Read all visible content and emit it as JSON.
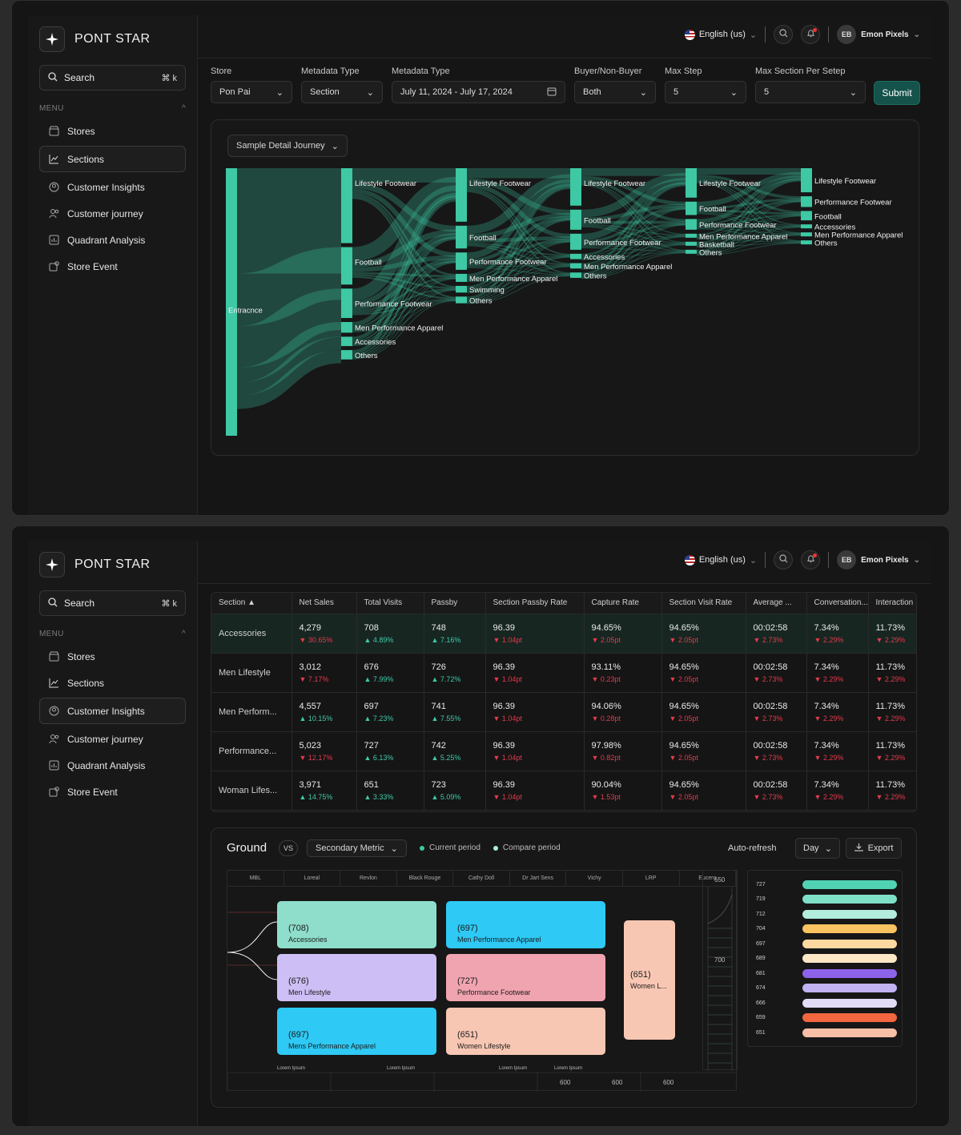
{
  "app": {
    "name": "PONT STAR"
  },
  "search": {
    "label": "Search",
    "shortcut": "⌘ k"
  },
  "menu": {
    "heading": "MENU"
  },
  "nav_p1": [
    {
      "label": "Stores",
      "icon": "store-icon"
    },
    {
      "label": "Sections",
      "icon": "chart-line-icon"
    },
    {
      "label": "Customer Insights",
      "icon": "insights-icon"
    },
    {
      "label": "Customer journey",
      "icon": "users-icon"
    },
    {
      "label": "Quadrant Analysis",
      "icon": "quadrant-icon"
    },
    {
      "label": "Store Event",
      "icon": "event-icon"
    }
  ],
  "topbar": {
    "language": "English (us)",
    "user_name": "Emon Pixels",
    "user_initials": "EB"
  },
  "filters": [
    {
      "label": "Store",
      "value": "Pon Pai"
    },
    {
      "label": "Metadata Type",
      "value": "Section"
    },
    {
      "label": "Metadata Type",
      "value": "July 11, 2024 - July 17, 2024"
    },
    {
      "label": "Buyer/Non-Buyer",
      "value": "Both"
    },
    {
      "label": "Max Step",
      "value": "5"
    },
    {
      "label": "Max Section Per Setep",
      "value": "5"
    }
  ],
  "submit_label": "Submit",
  "journey": {
    "dropdown": "Sample Detail Journey",
    "color": "#3ec8a4",
    "columns": [
      [
        {
          "name": "Entracnce",
          "share": 1.0
        }
      ],
      [
        {
          "name": "Lifestyle Footwear",
          "share": 0.28
        },
        {
          "name": "Football",
          "share": 0.14
        },
        {
          "name": "Performance Footwear",
          "share": 0.11
        },
        {
          "name": "Men Performance Apparel",
          "share": 0.04
        },
        {
          "name": "Accessories",
          "share": 0.035
        },
        {
          "name": "Others",
          "share": 0.035
        }
      ],
      [
        {
          "name": "Lifestyle Footwear",
          "share": 0.2
        },
        {
          "name": "Football",
          "share": 0.085
        },
        {
          "name": "Performance Footwear",
          "share": 0.065
        },
        {
          "name": "Men Performance Apparel",
          "share": 0.03
        },
        {
          "name": "Swimming",
          "share": 0.025
        },
        {
          "name": "Others",
          "share": 0.025
        }
      ],
      [
        {
          "name": "Lifestyle Footwear",
          "share": 0.14
        },
        {
          "name": "Football",
          "share": 0.075
        },
        {
          "name": "Performance Footwear",
          "share": 0.06
        },
        {
          "name": "Accessories",
          "share": 0.02
        },
        {
          "name": "Men Performance Apparel",
          "share": 0.02
        },
        {
          "name": "Others",
          "share": 0.02
        }
      ],
      [
        {
          "name": "Lifestyle Footwear",
          "share": 0.11
        },
        {
          "name": "Football",
          "share": 0.05
        },
        {
          "name": "Performance Footwear",
          "share": 0.04
        },
        {
          "name": "Men Performance Apparel",
          "share": 0.015
        },
        {
          "name": "Basketball",
          "share": 0.015
        },
        {
          "name": "Others",
          "share": 0.015
        }
      ],
      [
        {
          "name": "Lifestyle Footwear",
          "share": 0.09
        },
        {
          "name": "Performance Footwear",
          "share": 0.04
        },
        {
          "name": "Football",
          "share": 0.035
        },
        {
          "name": "Accessories",
          "share": 0.012
        },
        {
          "name": "Men Performance Apparel",
          "share": 0.012
        },
        {
          "name": "Others",
          "share": 0.012
        }
      ]
    ]
  },
  "nav_p2": [
    {
      "label": "Stores",
      "icon": "store-icon"
    },
    {
      "label": "Sections",
      "icon": "chart-line-icon"
    },
    {
      "label": "Customer Insights",
      "icon": "insights-icon"
    },
    {
      "label": "Customer journey",
      "icon": "users-icon"
    },
    {
      "label": "Quadrant Analysis",
      "icon": "quadrant-icon"
    },
    {
      "label": "Store Event",
      "icon": "event-icon"
    }
  ],
  "table": {
    "columns": [
      "Section",
      "Net Sales",
      "Total Visits",
      "Passby",
      "Section Passby Rate",
      "Capture Rate",
      "Section Visit Rate",
      "Average ...",
      "Conversation...",
      "Interaction"
    ],
    "rows": [
      {
        "section": "Accessories",
        "cells": [
          [
            "4,279",
            "30.65%",
            "dn"
          ],
          [
            "708",
            "4.89%",
            "up"
          ],
          [
            "748",
            "7.16%",
            "up"
          ],
          [
            "96.39",
            "1.04pt",
            "dn"
          ],
          [
            "94.65%",
            "2.05pt",
            "dn"
          ],
          [
            "94.65%",
            "2.05pt",
            "dn"
          ],
          [
            "00:02:58",
            "2.73%",
            "dn"
          ],
          [
            "7.34%",
            "2.29%",
            "dn"
          ],
          [
            "11.73%",
            "2.29%",
            "dn"
          ]
        ]
      },
      {
        "section": "Men Lifestyle",
        "cells": [
          [
            "3,012",
            "7.17%",
            "dn"
          ],
          [
            "676",
            "7.99%",
            "up"
          ],
          [
            "726",
            "7.72%",
            "up"
          ],
          [
            "96.39",
            "1.04pt",
            "dn"
          ],
          [
            "93.11%",
            "0.23pt",
            "dn"
          ],
          [
            "94.65%",
            "2.05pt",
            "dn"
          ],
          [
            "00:02:58",
            "2.73%",
            "dn"
          ],
          [
            "7.34%",
            "2.29%",
            "dn"
          ],
          [
            "11.73%",
            "2.29%",
            "dn"
          ]
        ]
      },
      {
        "section": "Men Perform...",
        "cells": [
          [
            "4,557",
            "10.15%",
            "up"
          ],
          [
            "697",
            "7.23%",
            "up"
          ],
          [
            "741",
            "7.55%",
            "up"
          ],
          [
            "96.39",
            "1.04pt",
            "dn"
          ],
          [
            "94.06%",
            "0.28pt",
            "dn"
          ],
          [
            "94.65%",
            "2.05pt",
            "dn"
          ],
          [
            "00:02:58",
            "2.73%",
            "dn"
          ],
          [
            "7.34%",
            "2.29%",
            "dn"
          ],
          [
            "11.73%",
            "2.29%",
            "dn"
          ]
        ]
      },
      {
        "section": "Performance...",
        "cells": [
          [
            "5,023",
            "12.17%",
            "dn"
          ],
          [
            "727",
            "6.13%",
            "up"
          ],
          [
            "742",
            "5.25%",
            "up"
          ],
          [
            "96.39",
            "1.04pt",
            "dn"
          ],
          [
            "97.98%",
            "0.82pt",
            "dn"
          ],
          [
            "94.65%",
            "2.05pt",
            "dn"
          ],
          [
            "00:02:58",
            "2.73%",
            "dn"
          ],
          [
            "7.34%",
            "2.29%",
            "dn"
          ],
          [
            "11.73%",
            "2.29%",
            "dn"
          ]
        ]
      },
      {
        "section": "Woman Lifes...",
        "cells": [
          [
            "3,971",
            "14.75%",
            "up"
          ],
          [
            "651",
            "3.33%",
            "up"
          ],
          [
            "723",
            "5.09%",
            "up"
          ],
          [
            "96.39",
            "1.04pt",
            "dn"
          ],
          [
            "90.04%",
            "1.53pt",
            "dn"
          ],
          [
            "94.65%",
            "2.05pt",
            "dn"
          ],
          [
            "00:02:58",
            "2.73%",
            "dn"
          ],
          [
            "7.34%",
            "2.29%",
            "dn"
          ],
          [
            "11.73%",
            "2.29%",
            "dn"
          ]
        ]
      }
    ]
  },
  "ground": {
    "title": "Ground",
    "vs": "VS",
    "secondary": "Secondary Metric",
    "legend": [
      {
        "label": "Current period",
        "color": "#3ec8a4"
      },
      {
        "label": "Compare period",
        "color": "#a8f0e0"
      }
    ],
    "auto_refresh": "Auto-refresh",
    "period": "Day",
    "export": "Export",
    "brands": [
      "MBL",
      "Loreal",
      "Revlon",
      "Black Rouge",
      "Cathy Doll",
      "Dr Jart Sens",
      "Vichy",
      "LRP",
      "Eucern"
    ],
    "tiles": [
      {
        "value": "(708)",
        "label": "Accessories",
        "color": "#8fdecb"
      },
      {
        "value": "(697)",
        "label": "Men Performance Apparel",
        "color": "#2ec9f5"
      },
      {
        "value": "(676)",
        "label": "Men Lifestyle",
        "color": "#cdbff5"
      },
      {
        "value": "(727)",
        "label": "Performance Footwear",
        "color": "#f0a4b0"
      },
      {
        "value": "(697)",
        "label": "Mens Performance Apparel",
        "color": "#2ec9f5"
      },
      {
        "value": "(651)",
        "label": "Women Lifestyle",
        "color": "#f8c7b3"
      },
      {
        "value": "(651)",
        "label": "Women L...",
        "color": "#f8c7b3"
      }
    ],
    "axis_bottom": [
      "Lorem Ipsum",
      "Lorem Ipsum",
      "Lorem Ipsum",
      "Lorem Ipsum"
    ],
    "axis_values": [
      "600",
      "600",
      "600"
    ],
    "scale_labels": [
      "650",
      "700"
    ],
    "ranking": [
      {
        "value": "727",
        "color": "#4fd3b3"
      },
      {
        "value": "719",
        "color": "#7fe0c8"
      },
      {
        "value": "712",
        "color": "#b2ecdd"
      },
      {
        "value": "704",
        "color": "#f8c360"
      },
      {
        "value": "697",
        "color": "#fbd9a0"
      },
      {
        "value": "689",
        "color": "#fde8c6"
      },
      {
        "value": "681",
        "color": "#8d63ea"
      },
      {
        "value": "674",
        "color": "#c2b1f3"
      },
      {
        "value": "666",
        "color": "#e3dcf7"
      },
      {
        "value": "659",
        "color": "#f2673f"
      },
      {
        "value": "651",
        "color": "#f7bfa6"
      }
    ]
  }
}
